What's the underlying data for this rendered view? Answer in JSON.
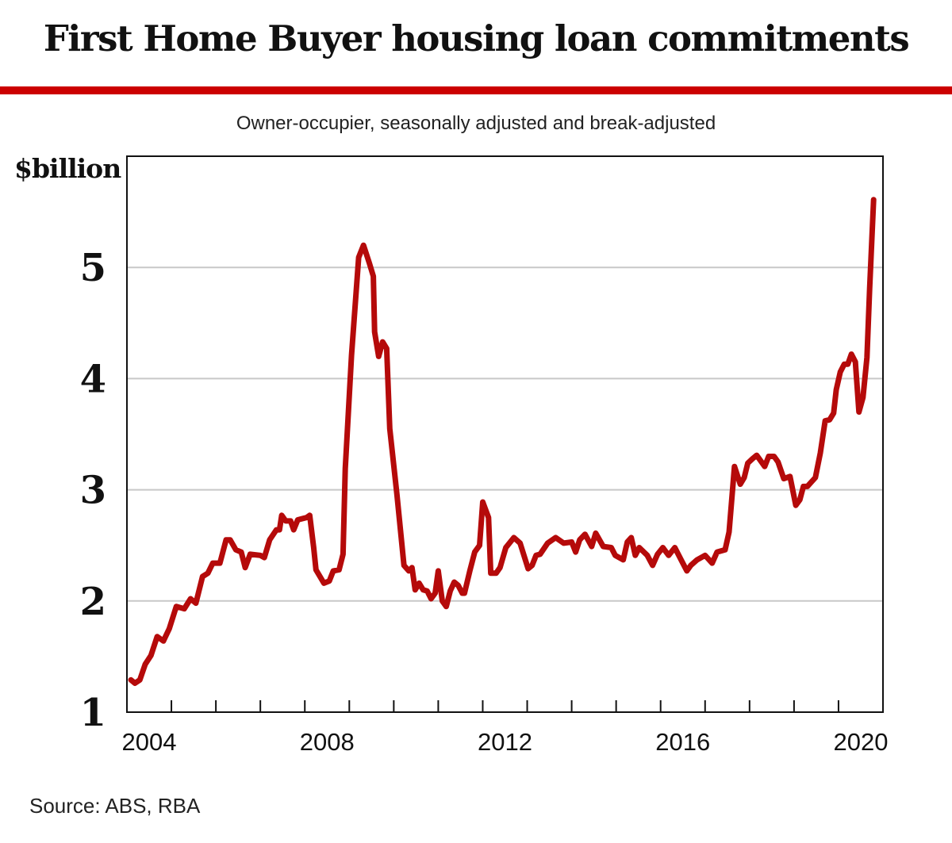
{
  "title": "First Home Buyer housing loan commitments",
  "source": "Source: ABS, RBA",
  "chart_data": {
    "type": "line",
    "title": "First Home Buyer housing loan commitments",
    "subtitle": "Owner-occupier, seasonally adjusted and break-adjusted",
    "ylabel": "$billion",
    "xlabel": "",
    "ylim": [
      1,
      6
    ],
    "xlim": [
      2004,
      2021
    ],
    "yticks": [
      1,
      2,
      3,
      4,
      5
    ],
    "ytick_labels": [
      "1",
      "2",
      "3",
      "4",
      "5"
    ],
    "xtick_labels": [
      {
        "label": "2004",
        "year": 2004
      },
      {
        "label": "2008",
        "year": 2008
      },
      {
        "label": "2012",
        "year": 2012
      },
      {
        "label": "2016",
        "year": 2016
      },
      {
        "label": "2020",
        "year": 2020
      }
    ],
    "grid": "horizontal",
    "line_color": "#b50a0a",
    "accent_color": "#cc0000",
    "x": [
      2004.09,
      2004.18,
      2004.29,
      2004.41,
      2004.54,
      2004.68,
      2004.82,
      2004.95,
      2005.11,
      2005.29,
      2005.43,
      2005.55,
      2005.7,
      2005.82,
      2005.93,
      2006.09,
      2006.23,
      2006.32,
      2006.45,
      2006.57,
      2006.66,
      2006.77,
      2007.0,
      2007.09,
      2007.21,
      2007.36,
      2007.43,
      2007.48,
      2007.57,
      2007.68,
      2007.75,
      2007.84,
      2008.04,
      2008.11,
      2008.2,
      2008.25,
      2008.43,
      2008.55,
      2008.64,
      2008.77,
      2008.86,
      2008.91,
      2009.05,
      2009.21,
      2009.32,
      2009.45,
      2009.54,
      2009.57,
      2009.66,
      2009.75,
      2009.84,
      2009.91,
      2010.07,
      2010.23,
      2010.34,
      2010.41,
      2010.48,
      2010.57,
      2010.66,
      2010.75,
      2010.84,
      2010.93,
      2011.0,
      2011.09,
      2011.18,
      2011.27,
      2011.36,
      2011.45,
      2011.54,
      2011.59,
      2011.71,
      2011.82,
      2011.93,
      2012.0,
      2012.13,
      2012.18,
      2012.3,
      2012.39,
      2012.52,
      2012.7,
      2012.84,
      2013.02,
      2013.11,
      2013.2,
      2013.29,
      2013.46,
      2013.64,
      2013.82,
      2014.0,
      2014.09,
      2014.18,
      2014.3,
      2014.45,
      2014.54,
      2014.71,
      2014.89,
      2014.98,
      2015.16,
      2015.25,
      2015.34,
      2015.43,
      2015.52,
      2015.7,
      2015.82,
      2015.93,
      2016.05,
      2016.18,
      2016.32,
      2016.46,
      2016.59,
      2016.68,
      2016.82,
      2017.0,
      2017.16,
      2017.27,
      2017.45,
      2017.54,
      2017.66,
      2017.79,
      2017.88,
      2017.96,
      2018.07,
      2018.16,
      2018.34,
      2018.43,
      2018.55,
      2018.64,
      2018.77,
      2018.91,
      2019.04,
      2019.13,
      2019.21,
      2019.3,
      2019.39,
      2019.48,
      2019.59,
      2019.7,
      2019.8,
      2019.89,
      2019.95,
      2020.04,
      2020.13,
      2020.21,
      2020.29,
      2020.38,
      2020.46,
      2020.55,
      2020.64,
      2020.7,
      2020.79
    ],
    "series": [
      {
        "values": [
          1.29,
          1.26,
          1.29,
          1.43,
          1.51,
          1.68,
          1.64,
          1.75,
          1.95,
          1.93,
          2.02,
          1.98,
          2.22,
          2.25,
          2.34,
          2.34,
          2.55,
          2.55,
          2.46,
          2.44,
          2.3,
          2.42,
          2.41,
          2.39,
          2.55,
          2.64,
          2.64,
          2.77,
          2.72,
          2.72,
          2.64,
          2.73,
          2.75,
          2.77,
          2.48,
          2.28,
          2.16,
          2.18,
          2.27,
          2.28,
          2.42,
          3.19,
          4.21,
          5.09,
          5.2,
          5.04,
          4.92,
          4.42,
          4.2,
          4.33,
          4.27,
          3.55,
          2.96,
          2.32,
          2.27,
          2.3,
          2.1,
          2.16,
          2.1,
          2.09,
          2.02,
          2.07,
          2.27,
          2.0,
          1.95,
          2.09,
          2.17,
          2.14,
          2.07,
          2.07,
          2.27,
          2.44,
          2.5,
          2.89,
          2.75,
          2.25,
          2.25,
          2.3,
          2.48,
          2.57,
          2.52,
          2.29,
          2.32,
          2.41,
          2.42,
          2.52,
          2.57,
          2.52,
          2.53,
          2.44,
          2.55,
          2.6,
          2.49,
          2.61,
          2.49,
          2.48,
          2.41,
          2.37,
          2.53,
          2.57,
          2.41,
          2.48,
          2.41,
          2.32,
          2.42,
          2.48,
          2.41,
          2.48,
          2.37,
          2.27,
          2.32,
          2.37,
          2.41,
          2.34,
          2.44,
          2.46,
          2.62,
          3.21,
          3.05,
          3.11,
          3.24,
          3.28,
          3.31,
          3.21,
          3.3,
          3.3,
          3.25,
          3.1,
          3.12,
          2.86,
          2.91,
          3.03,
          3.03,
          3.07,
          3.11,
          3.33,
          3.62,
          3.63,
          3.69,
          3.9,
          4.06,
          4.13,
          4.13,
          4.22,
          4.15,
          3.7,
          3.83,
          4.19,
          4.81,
          5.61
        ]
      }
    ]
  }
}
